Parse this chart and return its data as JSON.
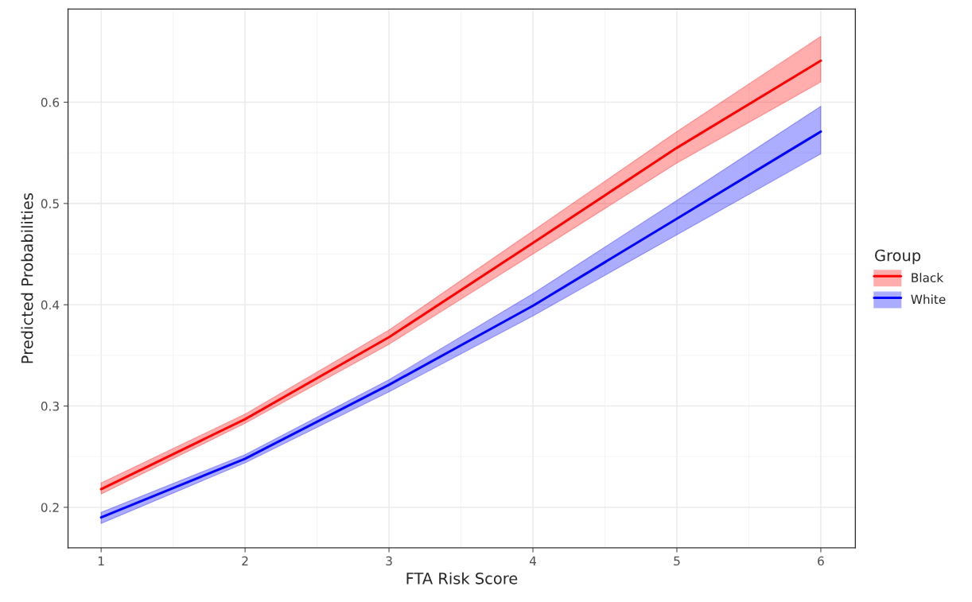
{
  "chart_data": {
    "type": "line",
    "xlabel": "FTA Risk Score",
    "ylabel": "Predicted Probabilities",
    "legend_title": "Group",
    "x": [
      1,
      2,
      3,
      4,
      5,
      6
    ],
    "series": [
      {
        "name": "Black",
        "color": "#ff0000",
        "values": [
          0.218,
          0.287,
          0.368,
          0.461,
          0.555,
          0.641
        ],
        "lower": [
          0.213,
          0.283,
          0.361,
          0.45,
          0.54,
          0.62
        ],
        "upper": [
          0.224,
          0.292,
          0.375,
          0.473,
          0.571,
          0.665
        ]
      },
      {
        "name": "White",
        "color": "#0000ff",
        "values": [
          0.19,
          0.248,
          0.321,
          0.399,
          0.485,
          0.571
        ],
        "lower": [
          0.184,
          0.244,
          0.314,
          0.389,
          0.469,
          0.549
        ],
        "upper": [
          0.195,
          0.252,
          0.326,
          0.411,
          0.503,
          0.596
        ]
      }
    ],
    "xlim": [
      0.77,
      6.24
    ],
    "ylim": [
      0.16,
      0.692
    ],
    "xticks": [
      1,
      2,
      3,
      4,
      5,
      6
    ],
    "yticks": [
      0.2,
      0.3,
      0.4,
      0.5,
      0.6
    ],
    "grid": true,
    "legend": "right",
    "line_style": "solid"
  }
}
